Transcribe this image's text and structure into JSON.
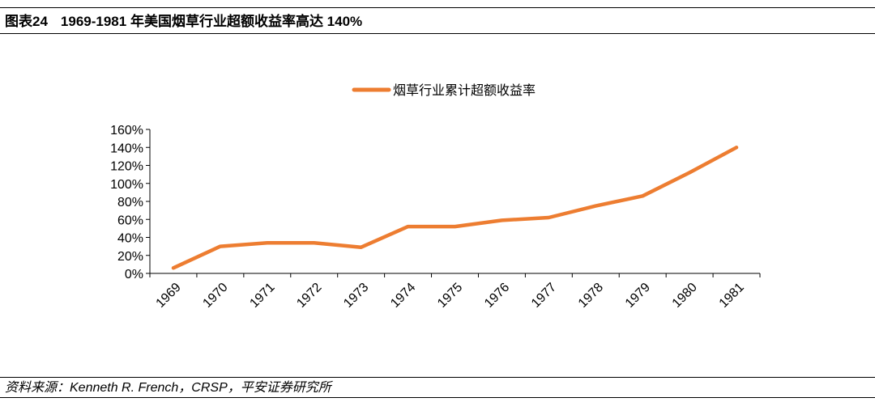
{
  "header": {
    "figure_label": "图表24",
    "title": "1969-1981 年美国烟草行业超额收益率高达 140%"
  },
  "source": {
    "text": "资料来源：Kenneth R. French，CRSP，平安证券研究所"
  },
  "colors": {
    "series": "#ED7D31",
    "axis": "#000000"
  },
  "chart_data": {
    "type": "line",
    "title": "",
    "xlabel": "",
    "ylabel": "",
    "categories": [
      "1969",
      "1970",
      "1971",
      "1972",
      "1973",
      "1974",
      "1975",
      "1976",
      "1977",
      "1978",
      "1979",
      "1980",
      "1981"
    ],
    "series": [
      {
        "name": "烟草行业累计超额收益率",
        "values": [
          6,
          30,
          34,
          34,
          29,
          52,
          52,
          59,
          62,
          75,
          86,
          112,
          140
        ]
      }
    ],
    "ylim": [
      0,
      160
    ],
    "yticks": [
      0,
      20,
      40,
      60,
      80,
      100,
      120,
      140,
      160
    ],
    "ytick_labels": [
      "0%",
      "20%",
      "40%",
      "60%",
      "80%",
      "100%",
      "120%",
      "140%",
      "160%"
    ],
    "grid": false,
    "legend_position": "top-center"
  }
}
